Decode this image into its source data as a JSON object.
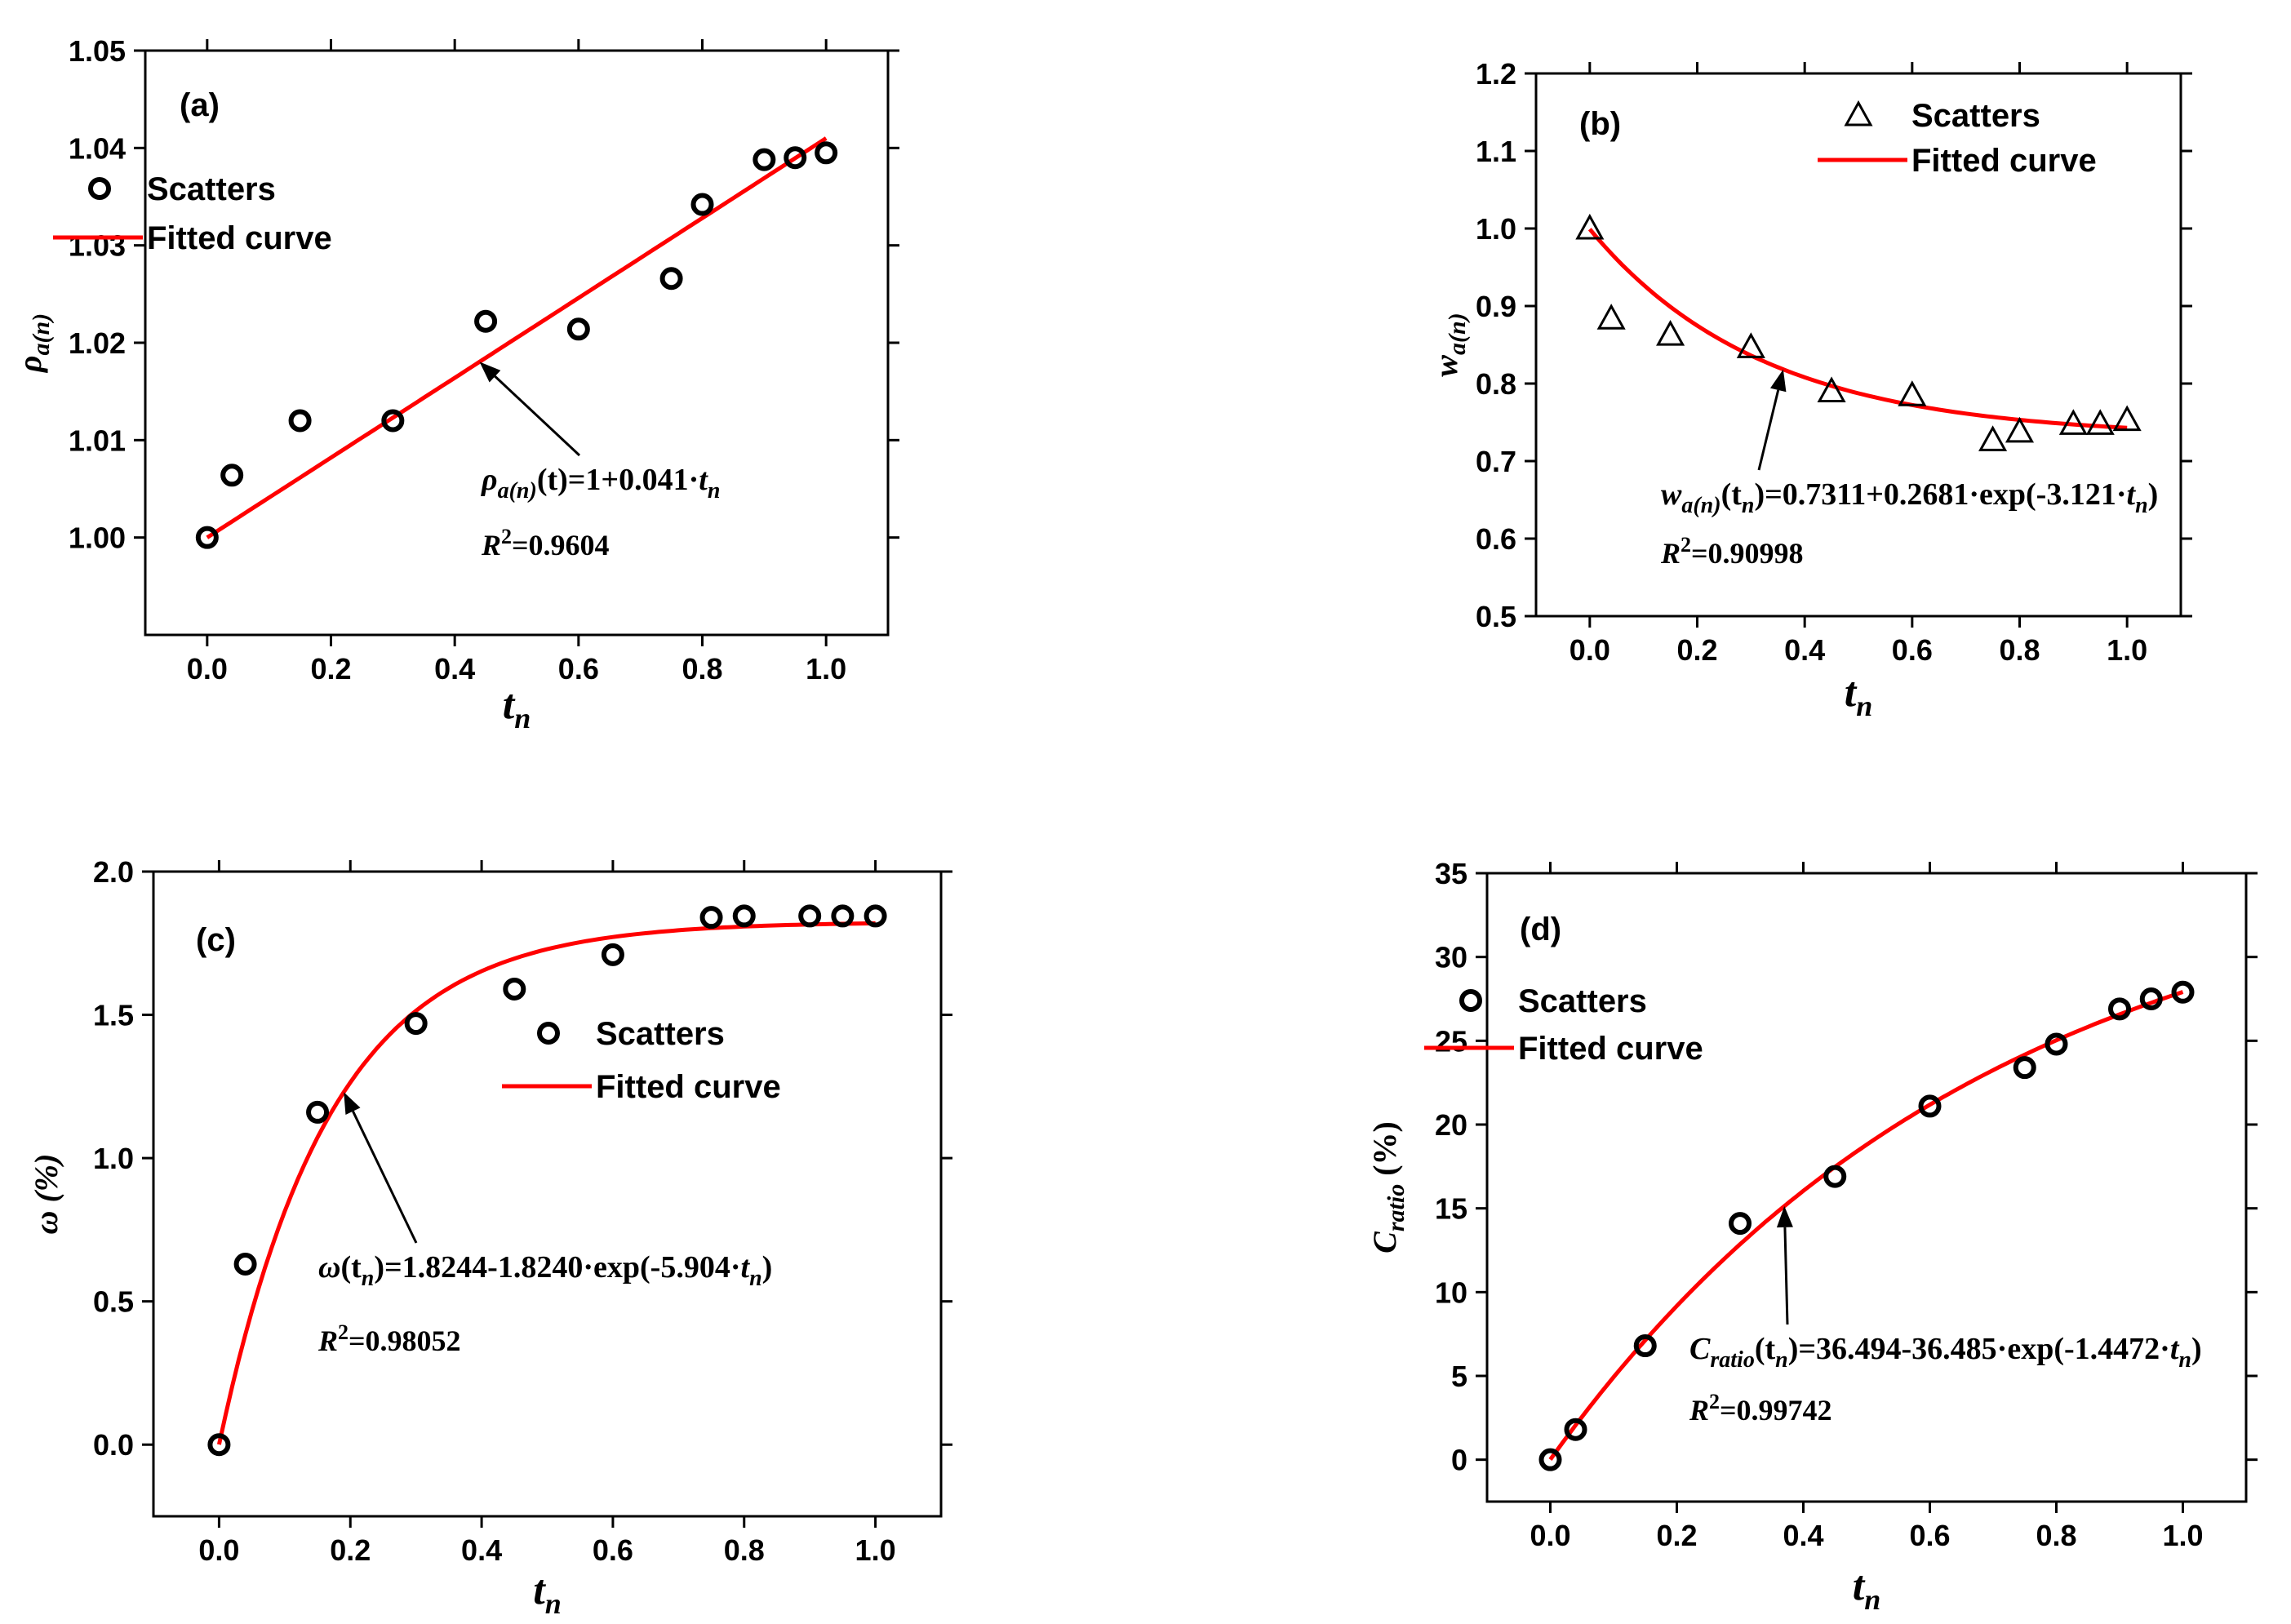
{
  "chart_data": [
    {
      "id": "a",
      "type": "scatter",
      "panel_label": "(a)",
      "xlabel": "t",
      "xlabel_sub": "n",
      "ylabel": "ρ",
      "ylabel_sub": "a(n)",
      "xlim": [
        -0.1,
        1.1
      ],
      "ylim": [
        0.99,
        1.05
      ],
      "xticks": [
        0.0,
        0.2,
        0.4,
        0.6,
        0.8,
        1.0
      ],
      "xtick_labels": [
        "0.0",
        "0.2",
        "0.4",
        "0.6",
        "0.8",
        "1.0"
      ],
      "yticks": [
        1.0,
        1.01,
        1.02,
        1.03,
        1.04,
        1.05
      ],
      "ytick_labels": [
        "1.00",
        "1.01",
        "1.02",
        "1.03",
        "1.04",
        "1.05"
      ],
      "marker": "circle",
      "series": [
        {
          "name": "Scatters",
          "x": [
            0,
            0.04,
            0.15,
            0.3,
            0.45,
            0.6,
            0.75,
            0.8,
            0.9,
            0.95,
            1.0
          ],
          "y": [
            1.0,
            1.0064,
            1.012,
            1.012,
            1.0222,
            1.0214,
            1.0266,
            1.0342,
            1.0388,
            1.039,
            1.0395
          ]
        },
        {
          "name": "Fitted curve",
          "model": "linear",
          "params": [
            1,
            0.041
          ]
        }
      ],
      "legend": [
        "Scatters",
        "Fitted curve"
      ],
      "equation": {
        "lhs": "ρ",
        "lhs_sub": "a(n)",
        "arg": "(t)",
        "rhs": "=1+0.041·",
        "var": "t",
        "var_sub": "n"
      },
      "r2": {
        "label": "R",
        "sup": "2",
        "value": "=0.9604"
      },
      "arrow_x": 0.44
    },
    {
      "id": "b",
      "type": "scatter",
      "panel_label": "(b)",
      "xlabel": "t",
      "xlabel_sub": "n",
      "ylabel": "w",
      "ylabel_sub": "a(n)",
      "xlim": [
        -0.1,
        1.1
      ],
      "ylim": [
        0.5,
        1.2
      ],
      "xticks": [
        0.0,
        0.2,
        0.4,
        0.6,
        0.8,
        1.0
      ],
      "xtick_labels": [
        "0.0",
        "0.2",
        "0.4",
        "0.6",
        "0.8",
        "1.0"
      ],
      "yticks": [
        0.5,
        0.6,
        0.7,
        0.8,
        0.9,
        1.0,
        1.1,
        1.2
      ],
      "ytick_labels": [
        "0.5",
        "0.6",
        "0.7",
        "0.8",
        "0.9",
        "1.0",
        "1.1",
        "1.2"
      ],
      "marker": "triangle",
      "series": [
        {
          "name": "Scatters",
          "x": [
            0,
            0.04,
            0.15,
            0.3,
            0.45,
            0.6,
            0.75,
            0.8,
            0.9,
            0.95,
            1.0
          ],
          "y": [
            1.0,
            0.884,
            0.863,
            0.847,
            0.79,
            0.785,
            0.727,
            0.738,
            0.748,
            0.748,
            0.753
          ]
        },
        {
          "name": "Fitted curve",
          "model": "exp",
          "params": [
            0.7311,
            0.2681,
            -3.121
          ]
        }
      ],
      "legend": [
        "Scatters",
        "Fitted curve"
      ],
      "equation": {
        "lhs": "w",
        "lhs_sub": "a(n)",
        "arg": "(t",
        "arg_sub": "n",
        "arg_end": ")",
        "rhs": "=0.7311+0.2681·exp(-3.121·",
        "var": "t",
        "var_sub": "n",
        "tail": ")"
      },
      "r2": {
        "label": "R",
        "sup": "2",
        "value": "=0.90998"
      },
      "arrow_x": 0.36
    },
    {
      "id": "c",
      "type": "scatter",
      "panel_label": "(c)",
      "xlabel": "t",
      "xlabel_sub": "n",
      "ylabel": "ω (%)",
      "ylabel_sub": "",
      "xlim": [
        -0.1,
        1.1
      ],
      "ylim": [
        -0.25,
        2.0
      ],
      "xticks": [
        0.0,
        0.2,
        0.4,
        0.6,
        0.8,
        1.0
      ],
      "xtick_labels": [
        "0.0",
        "0.2",
        "0.4",
        "0.6",
        "0.8",
        "1.0"
      ],
      "yticks": [
        0.0,
        0.5,
        1.0,
        1.5,
        2.0
      ],
      "ytick_labels": [
        "0.0",
        "0.5",
        "1.0",
        "1.5",
        "2.0"
      ],
      "marker": "circle",
      "series": [
        {
          "name": "Scatters",
          "x": [
            0,
            0.04,
            0.15,
            0.3,
            0.45,
            0.6,
            0.75,
            0.8,
            0.9,
            0.95,
            1.0
          ],
          "y": [
            0.0,
            0.63,
            1.16,
            1.47,
            1.59,
            1.71,
            1.84,
            1.845,
            1.845,
            1.845,
            1.845
          ]
        },
        {
          "name": "Fitted curve",
          "model": "exp",
          "params": [
            1.8244,
            -1.824,
            -5.904
          ]
        }
      ],
      "legend": [
        "Scatters",
        "Fitted curve"
      ],
      "equation": {
        "lhs": "ω",
        "lhs_sub": "",
        "arg": "(t",
        "arg_sub": "n",
        "arg_end": ")",
        "rhs": "=1.8244-1.8240·exp(-5.904·",
        "var": "t",
        "var_sub": "n",
        "tail": ")"
      },
      "r2": {
        "label": "R",
        "sup": "2",
        "value": "=0.98052"
      },
      "arrow_x": 0.19
    },
    {
      "id": "d",
      "type": "scatter",
      "panel_label": "(d)",
      "xlabel": "t",
      "xlabel_sub": "n",
      "ylabel": "C",
      "ylabel_sub": "ratio",
      "ylabel_suffix": " (%)",
      "xlim": [
        -0.1,
        1.1
      ],
      "ylim": [
        -2.5,
        35
      ],
      "xticks": [
        0.0,
        0.2,
        0.4,
        0.6,
        0.8,
        1.0
      ],
      "xtick_labels": [
        "0.0",
        "0.2",
        "0.4",
        "0.6",
        "0.8",
        "1.0"
      ],
      "yticks": [
        0,
        5,
        10,
        15,
        20,
        25,
        30,
        35
      ],
      "ytick_labels": [
        "0",
        "5",
        "10",
        "15",
        "20",
        "25",
        "30",
        "35"
      ],
      "marker": "circle",
      "series": [
        {
          "name": "Scatters",
          "x": [
            0,
            0.04,
            0.15,
            0.3,
            0.45,
            0.6,
            0.75,
            0.8,
            0.9,
            0.95,
            1.0
          ],
          "y": [
            0.0,
            1.8,
            6.8,
            14.1,
            16.9,
            21.1,
            23.4,
            24.8,
            26.9,
            27.5,
            27.9
          ]
        },
        {
          "name": "Fitted curve",
          "model": "exp",
          "params": [
            36.494,
            -36.485,
            -1.4472
          ]
        }
      ],
      "legend": [
        "Scatters",
        "Fitted curve"
      ],
      "equation": {
        "lhs": "C",
        "lhs_sub": "ratio",
        "arg": "(t",
        "arg_sub": "n",
        "arg_end": ")",
        "rhs": "=36.494-36.485·exp(-1.4472·",
        "var": "t",
        "var_sub": "n",
        "tail": ")"
      },
      "r2": {
        "label": "R",
        "sup": "2",
        "value": "=0.99742"
      },
      "arrow_x": 0.37
    }
  ],
  "colors": {
    "axis": "#000000",
    "marker": "#000000",
    "fit": "#ff0000"
  }
}
